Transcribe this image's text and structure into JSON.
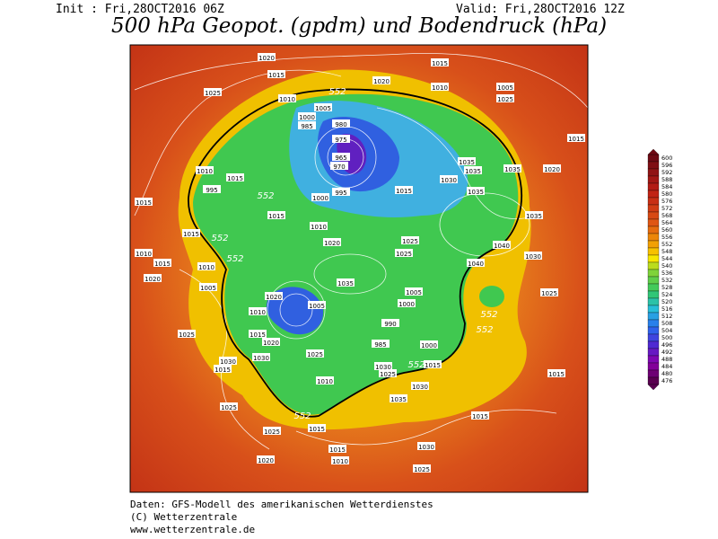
{
  "header": {
    "init": "Init : Fri,28OCT2016 06Z",
    "valid": "Valid: Fri,28OCT2016 12Z",
    "title": "500 hPa Geopot. (gpdm) und Bodendruck (hPa)"
  },
  "colorbar": {
    "ticks": [
      600,
      596,
      592,
      588,
      584,
      580,
      576,
      572,
      568,
      564,
      560,
      556,
      552,
      548,
      544,
      540,
      536,
      532,
      528,
      524,
      520,
      516,
      512,
      508,
      504,
      500,
      496,
      492,
      488,
      484,
      480,
      476
    ]
  },
  "map": {
    "isobar_labels": [
      "1020",
      "1015",
      "1025",
      "1015",
      "1020",
      "1010",
      "1005",
      "1025",
      "552",
      "1010",
      "1005",
      "1000",
      "985",
      "980",
      "975",
      "965",
      "970",
      "1015",
      "1035",
      "1035",
      "1030",
      "1035",
      "1035",
      "1020",
      "1010",
      "1015",
      "995",
      "552",
      "1000",
      "995",
      "1015",
      "1015",
      "1015",
      "1035",
      "1015",
      "552",
      "1010",
      "1020",
      "1025",
      "1025",
      "1040",
      "1010",
      "1015",
      "552",
      "1010",
      "1040",
      "1030",
      "1020",
      "1005",
      "1035",
      "1005",
      "1025",
      "1020",
      "1005",
      "1000",
      "552",
      "552",
      "1010",
      "1025",
      "1015",
      "990",
      "985",
      "1000",
      "1020",
      "1030",
      "1025",
      "1030",
      "1015",
      "1030",
      "1025",
      "552",
      "1015",
      "1010",
      "1035",
      "1030",
      "1015",
      "1025",
      "1015",
      "552",
      "1015",
      "1025",
      "1030",
      "1015",
      "1010",
      "1025",
      "1020"
    ]
  },
  "footer": {
    "lines": [
      "Daten: GFS-Modell des amerikanischen Wetterdienstes",
      "(C) Wetterzentrale",
      "www.wetterzentrale.de"
    ]
  }
}
